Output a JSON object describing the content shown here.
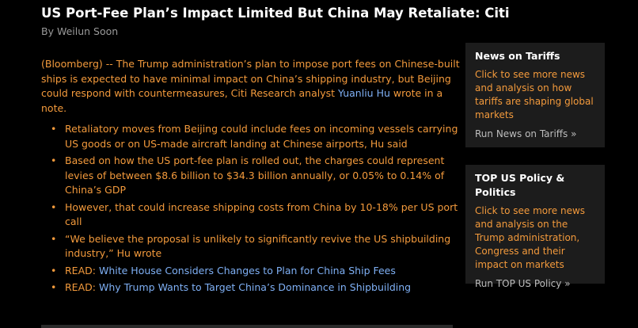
{
  "article": {
    "headline": "US Port-Fee Plan’s Impact Limited But China May Retaliate: Citi",
    "byline": "By Weilun Soon",
    "lead_before_link": "(Bloomberg) -- The Trump administration’s plan to impose port fees on Chinese-built ships is expected to have minimal impact on China’s shipping industry, but Beijing could respond with countermeasures, Citi Research analyst ",
    "lead_link": "Yuanliu Hu",
    "lead_after_link": " wrote in a note.",
    "bullets": [
      "Retaliatory moves from Beijing could include fees on incoming vessels carrying US goods or on US-made aircraft landing at Chinese airports, Hu said",
      "Based on how the US port-fee plan is rolled out, the charges could represent levies of between $8.6 billion to $34.3 billion annually, or 0.05% to 0.14% of China’s GDP",
      "However, that could increase shipping costs from China by 10-18% per US port call",
      "“We believe the proposal is unlikely to significantly revive the US shipbuilding industry,” Hu wrote"
    ],
    "read_prefix": "READ:",
    "read_links": [
      "White House Considers Changes to Plan for China Ship Fees",
      "Why Trump Wants to Target China’s Dominance in Shipbuilding"
    ]
  },
  "sidebar": {
    "panels": [
      {
        "title": "News on Tariffs",
        "description": "Click to see more news and analysis on how tariffs are shaping global markets",
        "run_link": "Run News on Tariffs »"
      },
      {
        "title": "TOP US Policy & Politics",
        "description": "Click to see more news and analysis on the Trump administration, Congress and their impact on markets",
        "run_link": "Run TOP US Policy »"
      }
    ]
  },
  "colors": {
    "background": "#000000",
    "headline": "#ffffff",
    "body_text": "#f39a3c",
    "link": "#7fb0f5",
    "panel_bg": "#1c1c1c"
  }
}
